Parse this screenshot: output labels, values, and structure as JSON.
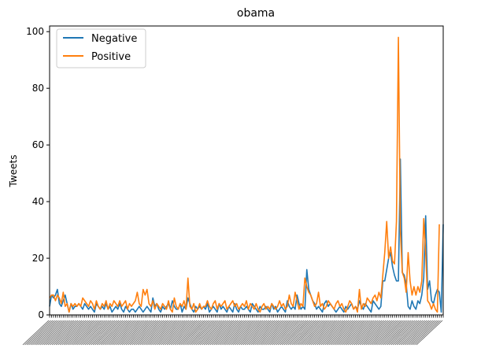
{
  "chart_data": {
    "type": "line",
    "title": "obama",
    "xlabel": "",
    "ylabel": "Tweets",
    "ylim": [
      0,
      102
    ],
    "yticks": [
      0,
      20,
      40,
      60,
      80,
      100
    ],
    "grid": false,
    "legend_position": "top-left",
    "x_tick_labels_rotated": true,
    "x_tick_labels_legible": false,
    "series": [
      {
        "name": "Negative",
        "color": "#1f77b4",
        "values": [
          3,
          7,
          6,
          7,
          9,
          4,
          3,
          5,
          7,
          4,
          1,
          4,
          2,
          3,
          3,
          4,
          3,
          2,
          4,
          3,
          2,
          3,
          2,
          1,
          4,
          3,
          2,
          3,
          2,
          4,
          2,
          3,
          1,
          2,
          3,
          2,
          4,
          2,
          1,
          3,
          2,
          1,
          2,
          2,
          1,
          2,
          3,
          2,
          1,
          2,
          3,
          2,
          1,
          6,
          3,
          4,
          2,
          1,
          3,
          2,
          3,
          4,
          2,
          5,
          3,
          2,
          2,
          4,
          1,
          3,
          2,
          6,
          4,
          2,
          1,
          3,
          2,
          3,
          2,
          3,
          2,
          4,
          1,
          2,
          3,
          2,
          1,
          4,
          2,
          3,
          2,
          1,
          3,
          2,
          1,
          4,
          2,
          1,
          3,
          2,
          2,
          3,
          2,
          1,
          4,
          3,
          2,
          1,
          3,
          2,
          2,
          3,
          2,
          1,
          4,
          2,
          3,
          1,
          2,
          3,
          2,
          1,
          5,
          3,
          2,
          3,
          2,
          7,
          4,
          2,
          3,
          2,
          16,
          9,
          7,
          5,
          4,
          2,
          3,
          2,
          1,
          4,
          5,
          3,
          4,
          3,
          2,
          1,
          2,
          3,
          2,
          1,
          3,
          2,
          3,
          4,
          2,
          3,
          2,
          5,
          3,
          2,
          4,
          3,
          2,
          1,
          5,
          4,
          3,
          2,
          3,
          12,
          12,
          16,
          20,
          22,
          17,
          14,
          12,
          12,
          55,
          15,
          14,
          11,
          3,
          2,
          5,
          3,
          2,
          5,
          4,
          7,
          13,
          35,
          9,
          12,
          5,
          4,
          7,
          9,
          8,
          1,
          32
        ]
      },
      {
        "name": "Positive",
        "color": "#ff7f0e",
        "values": [
          6,
          7,
          7,
          5,
          7,
          6,
          4,
          8,
          3,
          4,
          1,
          4,
          3,
          4,
          3,
          4,
          3,
          6,
          5,
          4,
          3,
          5,
          4,
          2,
          5,
          3,
          2,
          4,
          3,
          5,
          2,
          4,
          3,
          5,
          4,
          3,
          5,
          3,
          4,
          5,
          2,
          4,
          3,
          4,
          5,
          8,
          4,
          3,
          9,
          7,
          9,
          4,
          3,
          5,
          2,
          4,
          3,
          2,
          4,
          3,
          2,
          5,
          2,
          1,
          6,
          3,
          2,
          4,
          3,
          5,
          2,
          13,
          3,
          2,
          4,
          1,
          2,
          4,
          2,
          3,
          3,
          5,
          3,
          2,
          4,
          5,
          2,
          4,
          3,
          4,
          5,
          2,
          3,
          4,
          5,
          3,
          4,
          2,
          3,
          4,
          3,
          5,
          2,
          4,
          3,
          2,
          4,
          2,
          1,
          3,
          4,
          2,
          3,
          2,
          4,
          3,
          2,
          3,
          5,
          3,
          4,
          2,
          3,
          7,
          4,
          3,
          8,
          5,
          2,
          4,
          3,
          13,
          10,
          8,
          7,
          5,
          3,
          4,
          8,
          3,
          4,
          2,
          3,
          5,
          4,
          3,
          2,
          4,
          5,
          3,
          4,
          2,
          1,
          3,
          5,
          4,
          2,
          3,
          1,
          9,
          2,
          4,
          3,
          6,
          5,
          4,
          6,
          7,
          5,
          8,
          6,
          14,
          22,
          33,
          20,
          24,
          19,
          18,
          33,
          98,
          30,
          15,
          13,
          8,
          22,
          12,
          7,
          10,
          7,
          10,
          8,
          12,
          34,
          22,
          5,
          4,
          2,
          4,
          2,
          1,
          32
        ]
      }
    ]
  }
}
